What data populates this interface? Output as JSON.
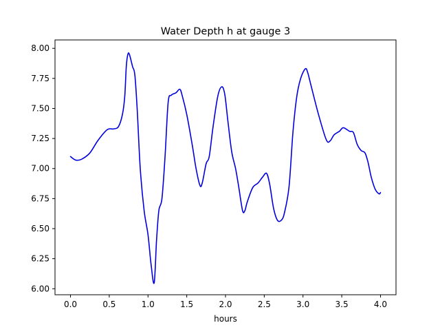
{
  "chart_data": {
    "type": "line",
    "title": "Water Depth h at gauge 3",
    "xlabel": "hours",
    "ylabel": "",
    "xlim": [
      -0.2,
      4.2
    ],
    "ylim": [
      5.95,
      8.07
    ],
    "xticks": [
      0.0,
      0.5,
      1.0,
      1.5,
      2.0,
      2.5,
      3.0,
      3.5,
      4.0
    ],
    "xtick_labels": [
      "0.0",
      "0.5",
      "1.0",
      "1.5",
      "2.0",
      "2.5",
      "3.0",
      "3.5",
      "4.0"
    ],
    "yticks": [
      6.0,
      6.25,
      6.5,
      6.75,
      7.0,
      7.25,
      7.5,
      7.75,
      8.0
    ],
    "ytick_labels": [
      "6.00",
      "6.25",
      "6.50",
      "6.75",
      "7.00",
      "7.25",
      "7.50",
      "7.75",
      "8.00"
    ],
    "grid": false,
    "series": [
      {
        "name": "h",
        "color": "#0000dd",
        "x": [
          0.0,
          0.07,
          0.15,
          0.25,
          0.35,
          0.45,
          0.5,
          0.56,
          0.62,
          0.67,
          0.7,
          0.72,
          0.74,
          0.76,
          0.8,
          0.83,
          0.86,
          0.9,
          0.95,
          1.0,
          1.04,
          1.08,
          1.11,
          1.14,
          1.18,
          1.22,
          1.26,
          1.3,
          1.36,
          1.41,
          1.44,
          1.5,
          1.57,
          1.62,
          1.67,
          1.7,
          1.75,
          1.79,
          1.84,
          1.9,
          1.95,
          1.99,
          2.03,
          2.08,
          2.13,
          2.17,
          2.22,
          2.25,
          2.28,
          2.35,
          2.42,
          2.48,
          2.53,
          2.57,
          2.62,
          2.67,
          2.72,
          2.76,
          2.82,
          2.87,
          2.92,
          2.97,
          3.03,
          3.06,
          3.1,
          3.2,
          3.3,
          3.35,
          3.4,
          3.47,
          3.52,
          3.6,
          3.65,
          3.7,
          3.75,
          3.8,
          3.84,
          3.88,
          3.93,
          3.98,
          4.0
        ],
        "values": [
          7.1,
          7.07,
          7.08,
          7.13,
          7.23,
          7.31,
          7.33,
          7.33,
          7.35,
          7.45,
          7.6,
          7.85,
          7.95,
          7.95,
          7.85,
          7.78,
          7.5,
          7.0,
          6.65,
          6.45,
          6.2,
          6.05,
          6.4,
          6.65,
          6.75,
          7.1,
          7.55,
          7.61,
          7.63,
          7.66,
          7.61,
          7.45,
          7.2,
          7.0,
          6.86,
          6.88,
          7.04,
          7.1,
          7.35,
          7.6,
          7.68,
          7.62,
          7.4,
          7.14,
          7.0,
          6.85,
          6.65,
          6.65,
          6.72,
          6.84,
          6.88,
          6.93,
          6.96,
          6.87,
          6.67,
          6.57,
          6.57,
          6.63,
          6.85,
          7.3,
          7.6,
          7.75,
          7.83,
          7.8,
          7.7,
          7.45,
          7.24,
          7.23,
          7.28,
          7.31,
          7.34,
          7.31,
          7.3,
          7.2,
          7.15,
          7.13,
          7.05,
          6.93,
          6.83,
          6.79,
          6.8
        ]
      }
    ]
  }
}
